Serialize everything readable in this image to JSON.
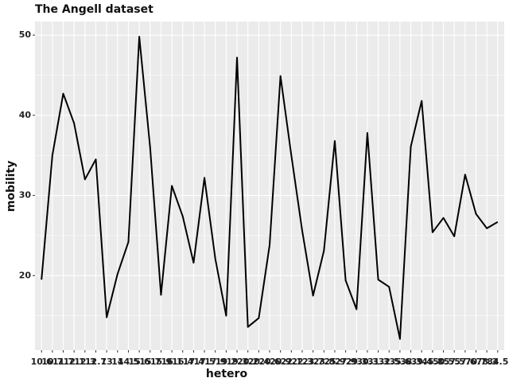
{
  "chart_data": {
    "type": "line",
    "title": "The Angell dataset",
    "x_label": "hetero",
    "y_label": "mobility",
    "categories": [
      "10.6",
      "10.7",
      "11.7",
      "12.1",
      "12.3",
      "12.7",
      "13",
      "14",
      "14.5",
      "15.6",
      "15.7",
      "15.9",
      "16.1",
      "16.4",
      "17.4",
      "17.5",
      "17.9",
      "19.2",
      "19.3",
      "20.2",
      "20.4",
      "20.6",
      "20.9",
      "22.1",
      "22.3",
      "23.7",
      "23.8",
      "25.9",
      "27.9",
      "29.3",
      "30.3",
      "31.3",
      "32.5",
      "35.6",
      "38.3",
      "39.4",
      "45.8",
      "50.5",
      "57.5",
      "57.6",
      "70.7",
      "78.3",
      "84.5"
    ],
    "series": [
      {
        "name": "mobility",
        "color": "#000000",
        "values": [
          19.5,
          35,
          42.7,
          39,
          32,
          34.5,
          14.8,
          20.2,
          24.2,
          49.8,
          36,
          17.6,
          31.2,
          27.4,
          21.6,
          32.2,
          22.1,
          15,
          47.2,
          13.6,
          14.7,
          23.8,
          44.9,
          35,
          25.6,
          17.5,
          23.1,
          36.8,
          19.4,
          15.8,
          37.8,
          19.5,
          18.6,
          12.1,
          36.1,
          41.8,
          25.4,
          27.2,
          24.9,
          32.6,
          27.7,
          25.9,
          26.7
        ]
      }
    ],
    "ylim": [
      10.7,
      51.7
    ],
    "yticks": [
      20,
      30,
      40,
      50
    ],
    "minor_yticks": [
      15,
      25,
      35,
      45
    ],
    "grid": true
  }
}
